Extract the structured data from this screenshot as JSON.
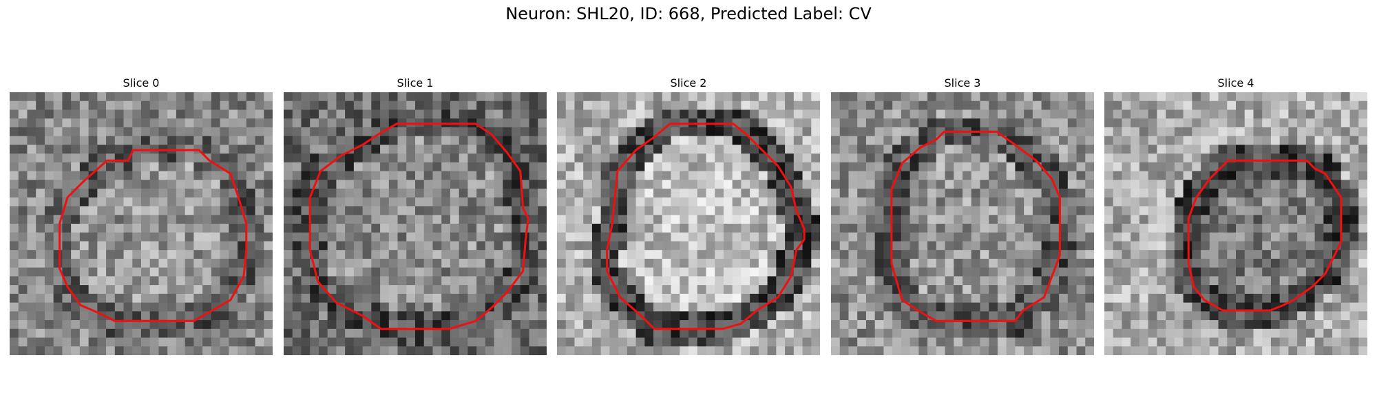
{
  "figure": {
    "title": "Neuron: SHL20, ID: 668, Predicted Label: CV"
  },
  "style": {
    "contour_color": "#ee1111"
  },
  "slices": [
    {
      "label": "Slice 0",
      "base_gray": 128,
      "seed": 11,
      "inside": 150,
      "ring": 95,
      "outside": 135,
      "contour": [
        [
          0.47,
          0.22
        ],
        [
          0.72,
          0.22
        ],
        [
          0.76,
          0.26
        ],
        [
          0.84,
          0.31
        ],
        [
          0.87,
          0.4
        ],
        [
          0.9,
          0.5
        ],
        [
          0.9,
          0.6
        ],
        [
          0.89,
          0.7
        ],
        [
          0.84,
          0.79
        ],
        [
          0.77,
          0.83
        ],
        [
          0.7,
          0.87
        ],
        [
          0.4,
          0.87
        ],
        [
          0.34,
          0.84
        ],
        [
          0.27,
          0.81
        ],
        [
          0.22,
          0.74
        ],
        [
          0.19,
          0.67
        ],
        [
          0.19,
          0.5
        ],
        [
          0.22,
          0.4
        ],
        [
          0.28,
          0.34
        ],
        [
          0.37,
          0.26
        ],
        [
          0.45,
          0.26
        ]
      ]
    },
    {
      "label": "Slice 1",
      "base_gray": 110,
      "seed": 23,
      "inside": 140,
      "ring": 80,
      "outside": 110,
      "contour": [
        [
          0.43,
          0.12
        ],
        [
          0.73,
          0.12
        ],
        [
          0.79,
          0.16
        ],
        [
          0.85,
          0.23
        ],
        [
          0.9,
          0.3
        ],
        [
          0.91,
          0.44
        ],
        [
          0.93,
          0.48
        ],
        [
          0.92,
          0.56
        ],
        [
          0.91,
          0.68
        ],
        [
          0.85,
          0.76
        ],
        [
          0.79,
          0.82
        ],
        [
          0.73,
          0.87
        ],
        [
          0.63,
          0.9
        ],
        [
          0.37,
          0.9
        ],
        [
          0.3,
          0.85
        ],
        [
          0.2,
          0.8
        ],
        [
          0.13,
          0.72
        ],
        [
          0.1,
          0.6
        ],
        [
          0.1,
          0.4
        ],
        [
          0.14,
          0.3
        ],
        [
          0.22,
          0.24
        ],
        [
          0.3,
          0.2
        ],
        [
          0.36,
          0.16
        ]
      ]
    },
    {
      "label": "Slice 2",
      "base_gray": 150,
      "seed": 37,
      "inside": 190,
      "ring": 70,
      "outside": 175,
      "contour": [
        [
          0.43,
          0.12
        ],
        [
          0.67,
          0.12
        ],
        [
          0.72,
          0.16
        ],
        [
          0.78,
          0.22
        ],
        [
          0.84,
          0.28
        ],
        [
          0.89,
          0.36
        ],
        [
          0.91,
          0.45
        ],
        [
          0.94,
          0.52
        ],
        [
          0.94,
          0.56
        ],
        [
          0.91,
          0.6
        ],
        [
          0.89,
          0.7
        ],
        [
          0.84,
          0.78
        ],
        [
          0.76,
          0.83
        ],
        [
          0.7,
          0.88
        ],
        [
          0.63,
          0.9
        ],
        [
          0.37,
          0.9
        ],
        [
          0.32,
          0.85
        ],
        [
          0.24,
          0.78
        ],
        [
          0.19,
          0.68
        ],
        [
          0.19,
          0.6
        ],
        [
          0.21,
          0.5
        ],
        [
          0.23,
          0.3
        ],
        [
          0.3,
          0.22
        ],
        [
          0.37,
          0.17
        ]
      ]
    },
    {
      "label": "Slice 3",
      "base_gray": 120,
      "seed": 53,
      "inside": 150,
      "ring": 85,
      "outside": 145,
      "contour": [
        [
          0.43,
          0.15
        ],
        [
          0.63,
          0.15
        ],
        [
          0.7,
          0.2
        ],
        [
          0.78,
          0.26
        ],
        [
          0.84,
          0.33
        ],
        [
          0.87,
          0.4
        ],
        [
          0.87,
          0.62
        ],
        [
          0.84,
          0.7
        ],
        [
          0.81,
          0.78
        ],
        [
          0.73,
          0.83
        ],
        [
          0.7,
          0.87
        ],
        [
          0.4,
          0.87
        ],
        [
          0.33,
          0.83
        ],
        [
          0.27,
          0.79
        ],
        [
          0.25,
          0.72
        ],
        [
          0.23,
          0.65
        ],
        [
          0.23,
          0.37
        ],
        [
          0.27,
          0.27
        ],
        [
          0.34,
          0.21
        ],
        [
          0.4,
          0.18
        ]
      ]
    },
    {
      "label": "Slice 4",
      "base_gray": 165,
      "seed": 71,
      "inside": 125,
      "ring": 70,
      "outside": 170,
      "contour": [
        [
          0.47,
          0.26
        ],
        [
          0.77,
          0.26
        ],
        [
          0.8,
          0.29
        ],
        [
          0.84,
          0.31
        ],
        [
          0.88,
          0.37
        ],
        [
          0.9,
          0.4
        ],
        [
          0.9,
          0.57
        ],
        [
          0.87,
          0.63
        ],
        [
          0.84,
          0.69
        ],
        [
          0.79,
          0.74
        ],
        [
          0.72,
          0.79
        ],
        [
          0.68,
          0.81
        ],
        [
          0.63,
          0.83
        ],
        [
          0.45,
          0.83
        ],
        [
          0.38,
          0.79
        ],
        [
          0.34,
          0.74
        ],
        [
          0.32,
          0.65
        ],
        [
          0.32,
          0.48
        ],
        [
          0.35,
          0.4
        ],
        [
          0.4,
          0.33
        ]
      ]
    }
  ]
}
